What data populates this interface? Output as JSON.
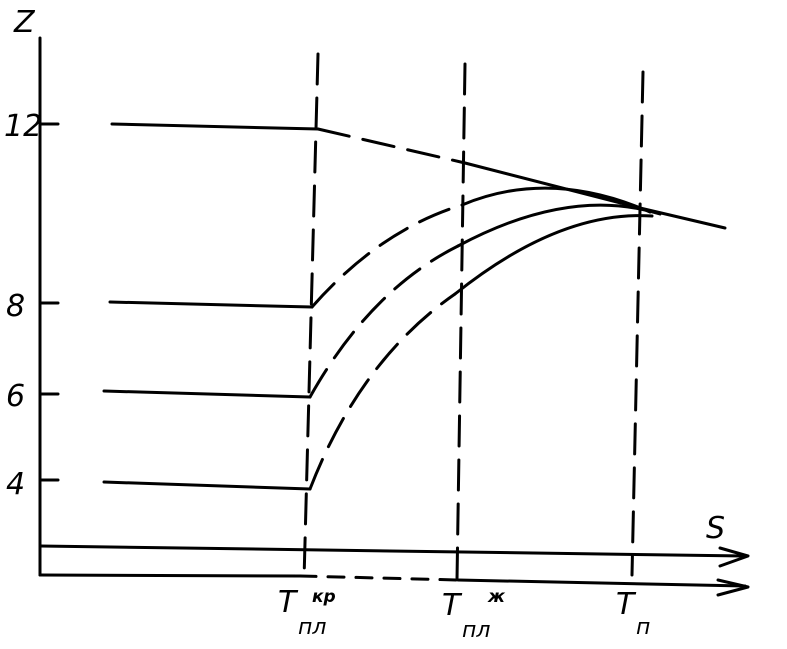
{
  "axes": {
    "y_label": "Z",
    "x_label": "S",
    "y_ticks": [
      "12",
      "8",
      "6",
      "4"
    ]
  },
  "markers": {
    "t1": {
      "main": "T",
      "sub": "пл",
      "sup": "кр"
    },
    "t2": {
      "main": "T",
      "sub": "пл",
      "sup": "ж"
    },
    "t3": {
      "main": "T",
      "sub": "п"
    }
  },
  "colors": {
    "ink": "#000000",
    "background": "#ffffff"
  },
  "chart_data": {
    "type": "line",
    "xlabel": "S",
    "ylabel": "Z",
    "y_ticks": [
      12,
      8,
      6,
      4
    ],
    "x_markers": [
      "Tпл кр",
      "Tпл ж",
      "Tп"
    ],
    "series": [
      {
        "start_value": 12,
        "end_value": 10.1
      },
      {
        "start_value": 8,
        "end_value": 10.1
      },
      {
        "start_value": 6,
        "end_value": 10.1
      },
      {
        "start_value": 4,
        "end_value": 10.1
      }
    ]
  }
}
